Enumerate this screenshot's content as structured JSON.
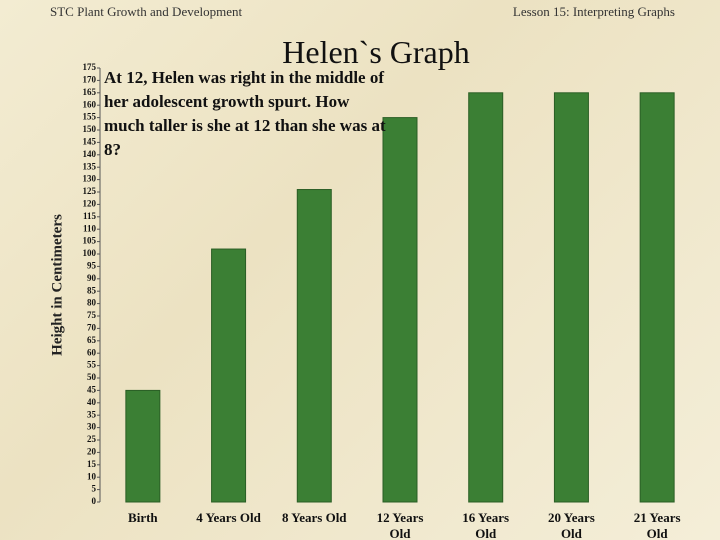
{
  "header": {
    "left": "STC Plant Growth and Development",
    "right": "Lesson 15:  Interpreting Graphs"
  },
  "chart_data": {
    "type": "bar",
    "title": "Helen`s Graph",
    "annotation": "At 12, Helen was right in the middle of her adolescent growth spurt.  How much taller is she at 12 than she was at 8?",
    "y_label": "Height in Centimeters",
    "categories": [
      "Birth",
      "4 Years Old",
      "8 Years Old",
      "12 Years Old",
      "16 Years Old",
      "20 Years Old",
      "21 Years Old"
    ],
    "values": [
      45,
      102,
      126,
      155,
      165,
      165,
      165
    ],
    "color": "#3b7f34",
    "ylim": [
      0,
      175
    ],
    "yticks": [
      0,
      5,
      10,
      15,
      20,
      25,
      30,
      35,
      40,
      45,
      50,
      55,
      60,
      65,
      70,
      75,
      80,
      85,
      90,
      95,
      100,
      105,
      110,
      115,
      120,
      125,
      130,
      135,
      140,
      145,
      150,
      155,
      160,
      165,
      170,
      175
    ],
    "grid": false
  }
}
